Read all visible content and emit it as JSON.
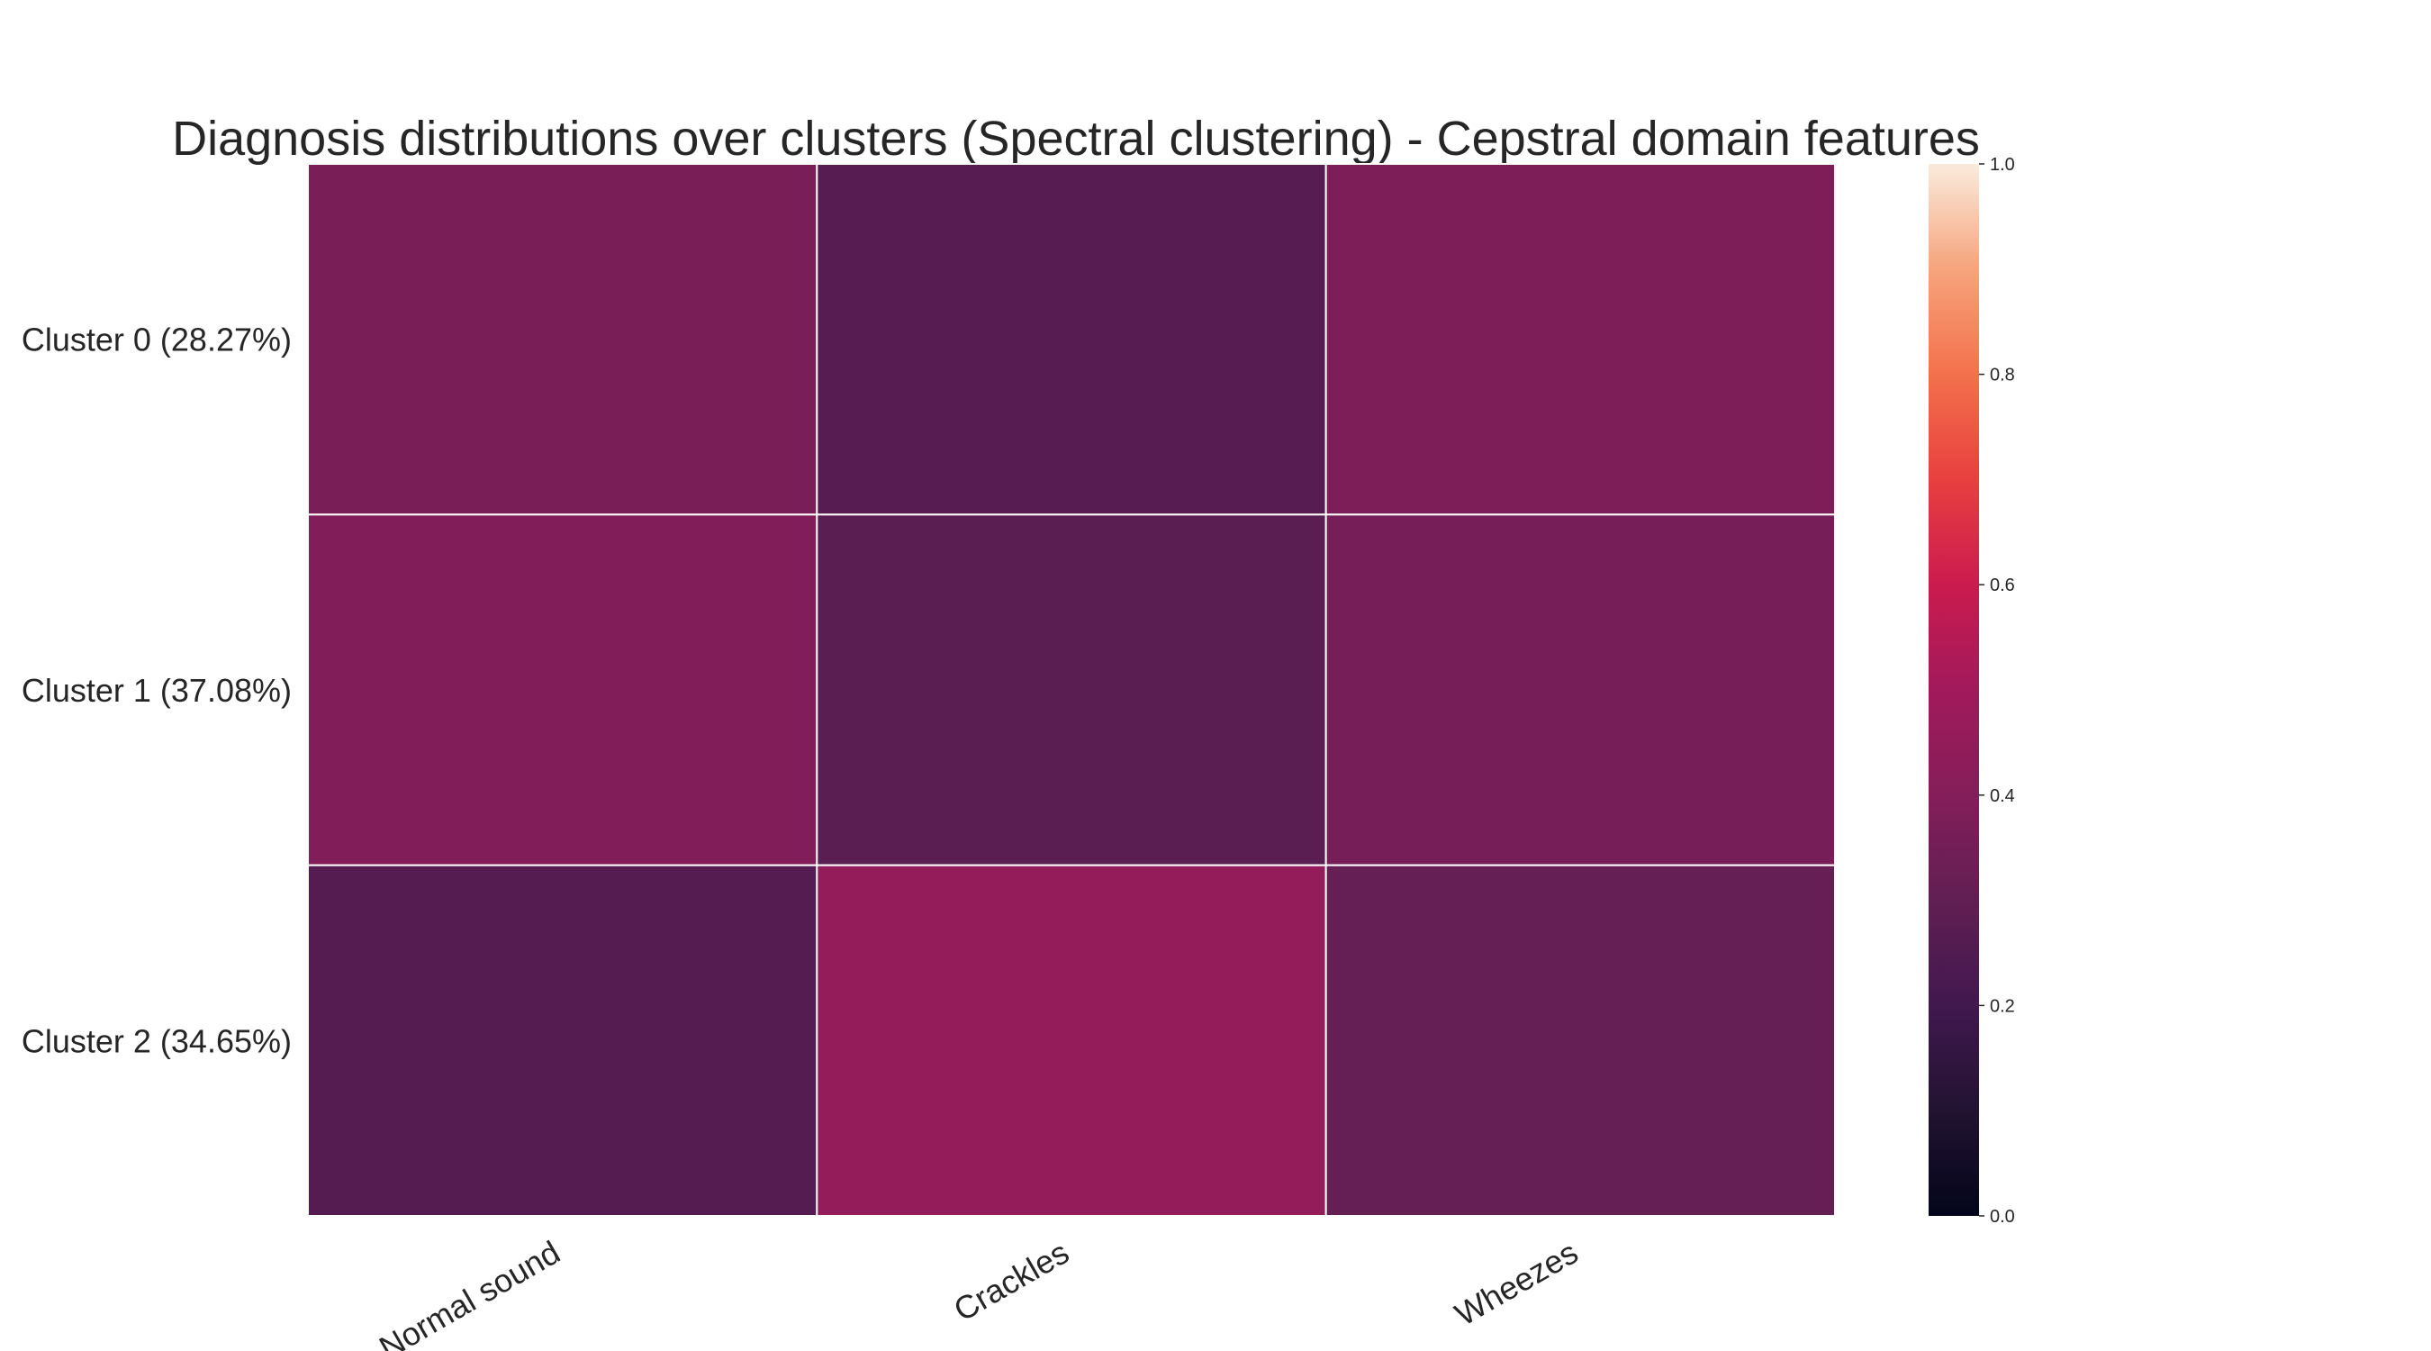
{
  "chart_data": {
    "type": "heatmap",
    "title": "Diagnosis distributions over clusters (Spectral clustering) - Cepstral domain features",
    "rows": [
      "Cluster 0 (28.27%)",
      "Cluster 1 (37.08%)",
      "Cluster 2 (34.65%)"
    ],
    "columns": [
      "Normal sound",
      "Crackles",
      "Wheezes"
    ],
    "values": [
      [
        0.37,
        0.27,
        0.38
      ],
      [
        0.39,
        0.28,
        0.36
      ],
      [
        0.26,
        0.46,
        0.31
      ]
    ],
    "colorbar": {
      "colormap": "rocket",
      "range": [
        0.0,
        1.0
      ],
      "ticks": [
        "0.0",
        "0.2",
        "0.4",
        "0.6",
        "0.8",
        "1.0"
      ]
    },
    "grid": false
  }
}
